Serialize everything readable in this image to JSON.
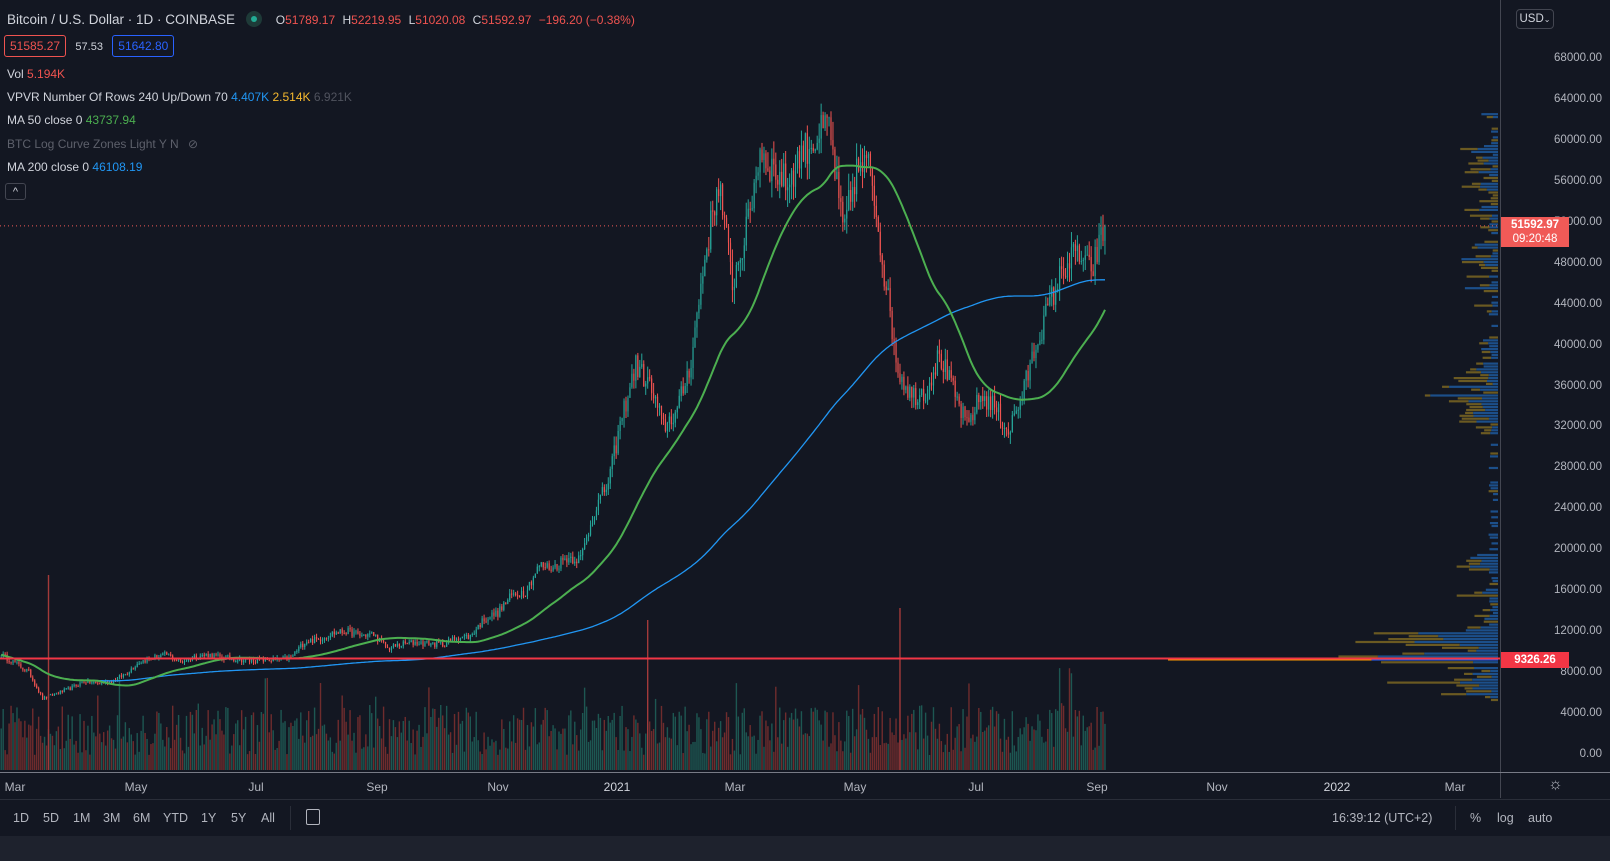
{
  "header": {
    "symbol": "Bitcoin / U.S. Dollar · 1D · COINBASE",
    "o_label": "O",
    "o": "51789.17",
    "h_label": "H",
    "h": "52219.95",
    "l_label": "L",
    "l": "51020.08",
    "c_label": "C",
    "c": "51592.97",
    "change": "−196.20 (−0.38%)"
  },
  "quote": {
    "bid": "51585.27",
    "spread": "57.53",
    "ask": "51642.80"
  },
  "indicators": {
    "vol_label": "Vol",
    "vol_value": "5.194K",
    "vpvr_label": "VPVR Number Of Rows 240 Up/Down 70",
    "vpvr_up": "4.407K",
    "vpvr_down": "2.514K",
    "vpvr_total": "6.921K",
    "ma50_label": "MA 50 close 0",
    "ma50_value": "43737.94",
    "logcurve_label": "BTC Log Curve Zones Light Y N",
    "ma200_label": "MA 200 close 0",
    "ma200_value": "46108.19",
    "collapse": "^"
  },
  "price_axis": {
    "currency": "USD",
    "last_price": "51592.97",
    "countdown": "09:20:48",
    "line_price": "9326.26"
  },
  "toolbar": {
    "ranges": [
      "1D",
      "5D",
      "1M",
      "3M",
      "6M",
      "YTD",
      "1Y",
      "5Y",
      "All"
    ],
    "time": "16:39:12 (UTC+2)",
    "percent": "%",
    "log": "log",
    "auto": "auto"
  },
  "colors": {
    "bg": "#131722",
    "up": "#26a69a",
    "down": "#ef5350",
    "ma50": "#4caf50",
    "ma200": "#2196f3",
    "vp_up": "#2962ff",
    "vp_down": "#c9a227",
    "hline": "#f23645"
  },
  "chart_data": {
    "type": "candlestick",
    "title": "Bitcoin / U.S. Dollar · 1D · COINBASE",
    "ylim": [
      0,
      68000
    ],
    "yticks": [
      "0.00",
      "4000.00",
      "8000.00",
      "12000.00",
      "16000.00",
      "20000.00",
      "24000.00",
      "28000.00",
      "32000.00",
      "36000.00",
      "40000.00",
      "44000.00",
      "48000.00",
      "52000.00",
      "56000.00",
      "60000.00",
      "64000.00",
      "68000.00"
    ],
    "xticks": [
      "Mar",
      "May",
      "Jul",
      "Sep",
      "Nov",
      "2021",
      "Mar",
      "May",
      "Jul",
      "Sep",
      "Nov",
      "2022",
      "Mar"
    ],
    "weekly_start": "2020-02-23",
    "weekly_closes": [
      9700,
      8900,
      8000,
      5400,
      5900,
      6400,
      7100,
      6900,
      7100,
      7800,
      9000,
      9400,
      9700,
      9000,
      9500,
      9700,
      9400,
      9300,
      9100,
      9200,
      9200,
      9400,
      11000,
      11200,
      11800,
      12000,
      11600,
      11700,
      10300,
      10700,
      10900,
      10800,
      10700,
      11400,
      11500,
      13200,
      13800,
      15500,
      15900,
      18400,
      18200,
      19200,
      19100,
      23800,
      26500,
      33000,
      38000,
      36000,
      32000,
      33500,
      38500,
      48500,
      56000,
      46000,
      51000,
      59000,
      57000,
      55800,
      58800,
      60000,
      61500,
      51000,
      57000,
      57500,
      47000,
      37500,
      35000,
      35500,
      39000,
      35500,
      32000,
      35000,
      34000,
      31500,
      35000,
      40000,
      44000,
      47500,
      49000,
      47000,
      51592.97
    ],
    "ma50_last": 43737.94,
    "ma200_last": 46108.19,
    "horizontal_line": 9326.26,
    "current_price": 51592.97
  }
}
